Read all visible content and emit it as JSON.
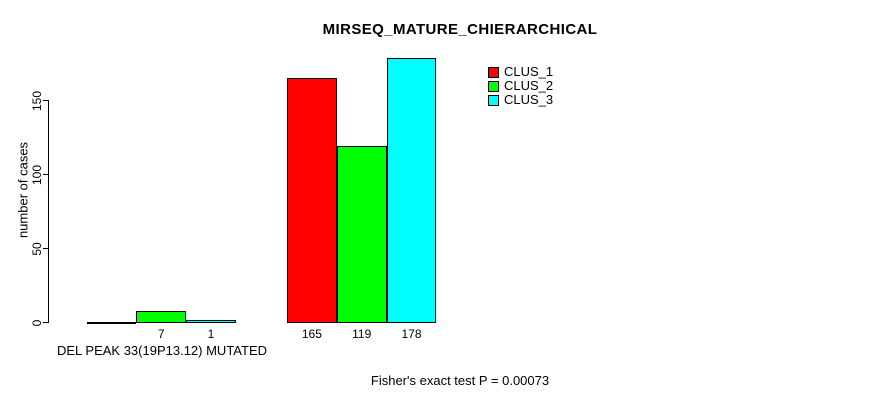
{
  "chart_data": {
    "type": "bar",
    "title": "MIRSEQ_MATURE_CHIERARCHICAL",
    "ylabel": "number of cases",
    "xlabel": "",
    "ylim": [
      0,
      180
    ],
    "yticks": [
      0,
      50,
      100,
      150
    ],
    "grid": false,
    "legend_position": "top-right",
    "categories": [
      "DEL PEAK 33(19P13.12) MUTATED",
      ""
    ],
    "series": [
      {
        "name": "CLUS_1",
        "color": "#ff0000",
        "values": [
          0,
          165
        ]
      },
      {
        "name": "CLUS_2",
        "color": "#00ff00",
        "values": [
          7,
          119
        ]
      },
      {
        "name": "CLUS_3",
        "color": "#00ffff",
        "values": [
          1,
          178
        ]
      }
    ],
    "bar_value_labels": [
      [
        "",
        "7",
        "1"
      ],
      [
        "165",
        "119",
        "178"
      ]
    ],
    "annotation": "Fisher's exact test P = 0.00073"
  }
}
